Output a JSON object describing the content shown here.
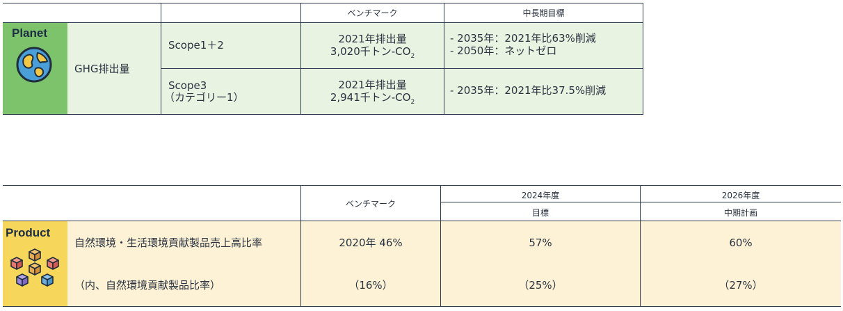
{
  "planet": {
    "badge_label": "Planet",
    "header": {
      "benchmark": "ベンチマーク",
      "target": "中長期目標"
    },
    "metric": "GHG排出量",
    "rows": [
      {
        "scope_line1": "Scope1＋2",
        "scope_line2": "",
        "benchmark_line1": "2021年排出量",
        "benchmark_line2": "3,020千トン-CO",
        "benchmark_sub": "2",
        "target_line1": "- 2035年：2021年比63%削減",
        "target_line2": "- 2050年：ネットゼロ"
      },
      {
        "scope_line1": "Scope3",
        "scope_line2": "（カテゴリー1）",
        "benchmark_line1": "2021年排出量",
        "benchmark_line2": "2,941千トン-CO",
        "benchmark_sub": "2",
        "target_line1": "- 2035年：2021年比37.5%削減",
        "target_line2": ""
      }
    ],
    "colors": {
      "badge": "#7dc36b",
      "row_bg": "#e8f3e2",
      "line": "#2d3c4e"
    },
    "icon": "globe-icon"
  },
  "product": {
    "badge_label": "Product",
    "header": {
      "benchmark": "ベンチマーク",
      "year_2024": "2024年度",
      "year_2024_sub": "目標",
      "year_2026": "2026年度",
      "year_2026_sub": "中期計画"
    },
    "rows": [
      {
        "label": "自然環境・生活環境貢献製品売上高比率",
        "benchmark": "2020年 46%",
        "target_2024": "57%",
        "target_2026": "60%"
      },
      {
        "label": "（内、自然環境貢献製品比率）",
        "benchmark": "（16%）",
        "target_2024": "（25%）",
        "target_2026": "（27%）"
      }
    ],
    "colors": {
      "badge": "#f7d65c",
      "row_bg": "#fdf2d6",
      "line": "#2d3c4e"
    },
    "icon": "cubes-icon"
  }
}
